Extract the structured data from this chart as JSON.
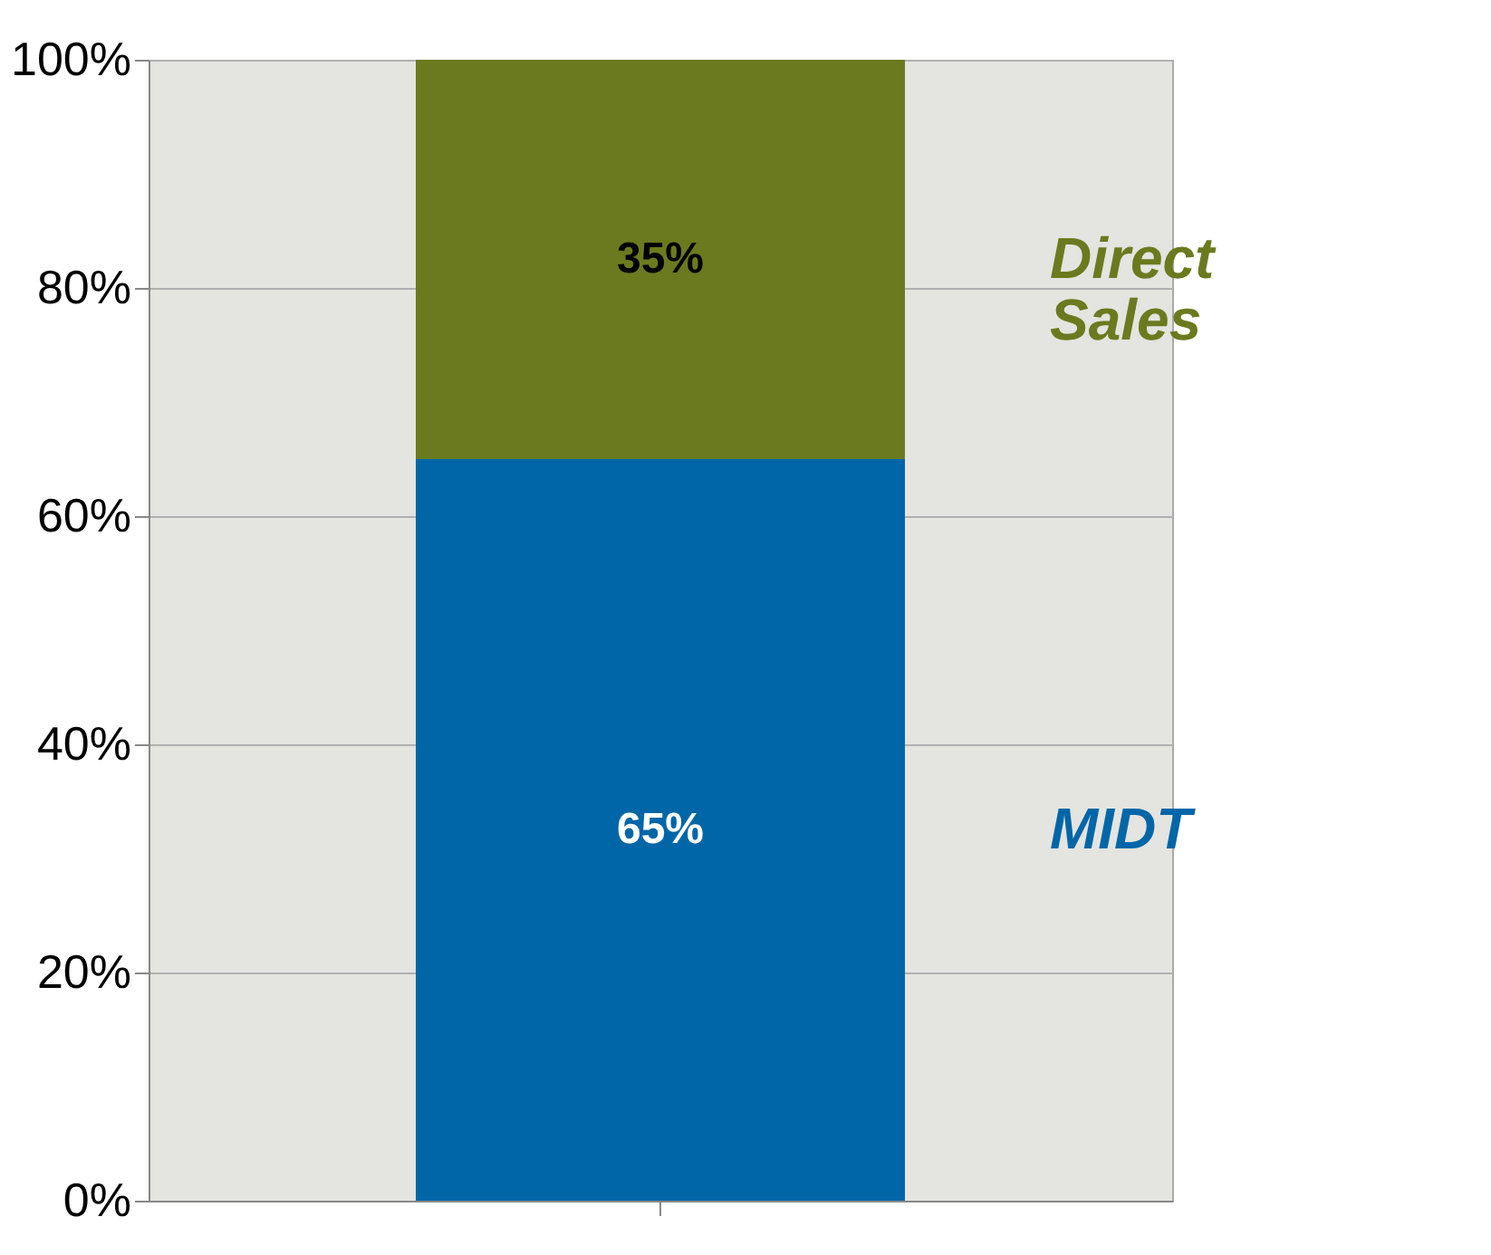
{
  "chart_data": {
    "type": "bar",
    "stacked": true,
    "categories": [
      null
    ],
    "series": [
      {
        "name": "MIDT",
        "color": "#0066a8",
        "values": [
          65
        ],
        "value_labels": [
          "65%"
        ]
      },
      {
        "name": "Direct Sales",
        "color": "#6b7a1e",
        "values": [
          35
        ],
        "value_labels": [
          "35%"
        ]
      }
    ],
    "ylim": [
      0,
      100
    ],
    "yticks": [
      {
        "value": 0,
        "label": "0%"
      },
      {
        "value": 20,
        "label": "20%"
      },
      {
        "value": 40,
        "label": "40%"
      },
      {
        "value": 60,
        "label": "60%"
      },
      {
        "value": 80,
        "label": "80%"
      },
      {
        "value": 100,
        "label": "100%"
      }
    ],
    "grid": "y",
    "tick_labels": "y",
    "legend": false
  }
}
